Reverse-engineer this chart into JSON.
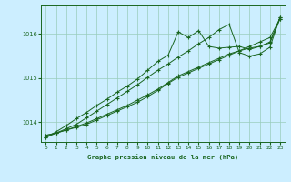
{
  "title": "Graphe pression niveau de la mer (hPa)",
  "bg_color": "#cceeff",
  "plot_bg_color": "#cceeff",
  "grid_color": "#99ccbb",
  "line_color": "#1a6620",
  "xlim": [
    -0.5,
    23.5
  ],
  "ylim": [
    1013.55,
    1016.65
  ],
  "yticks": [
    1014,
    1015,
    1016
  ],
  "xticks": [
    0,
    1,
    2,
    3,
    4,
    5,
    6,
    7,
    8,
    9,
    10,
    11,
    12,
    13,
    14,
    15,
    16,
    17,
    18,
    19,
    20,
    21,
    22,
    23
  ],
  "series1": [
    1013.7,
    1013.75,
    1013.82,
    1013.88,
    1013.95,
    1014.05,
    1014.15,
    1014.25,
    1014.35,
    1014.45,
    1014.58,
    1014.72,
    1014.88,
    1015.02,
    1015.12,
    1015.22,
    1015.32,
    1015.42,
    1015.52,
    1015.62,
    1015.72,
    1015.82,
    1015.92,
    1016.35
  ],
  "series2": [
    1013.7,
    1013.75,
    1013.82,
    1013.9,
    1013.98,
    1014.08,
    1014.18,
    1014.28,
    1014.38,
    1014.5,
    1014.62,
    1014.75,
    1014.9,
    1015.05,
    1015.15,
    1015.25,
    1015.35,
    1015.45,
    1015.55,
    1015.62,
    1015.68,
    1015.72,
    1015.8,
    1016.35
  ],
  "series3": [
    1013.65,
    1013.78,
    1013.92,
    1014.08,
    1014.22,
    1014.38,
    1014.52,
    1014.68,
    1014.82,
    1014.98,
    1015.18,
    1015.38,
    1015.52,
    1016.05,
    1015.92,
    1016.08,
    1015.72,
    1015.68,
    1015.7,
    1015.72,
    1015.65,
    1015.72,
    1015.82,
    1016.38
  ],
  "series4": [
    1013.65,
    1013.75,
    1013.85,
    1013.95,
    1014.1,
    1014.25,
    1014.4,
    1014.55,
    1014.7,
    1014.85,
    1015.02,
    1015.18,
    1015.32,
    1015.48,
    1015.62,
    1015.78,
    1015.92,
    1016.1,
    1016.22,
    1015.58,
    1015.5,
    1015.55,
    1015.7,
    1016.38
  ]
}
